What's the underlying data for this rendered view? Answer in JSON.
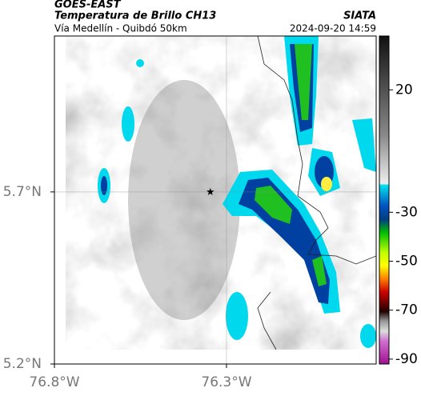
{
  "header": {
    "source": "GOES-EAST",
    "title": "Temperatura de Brillo CH13",
    "brand": "SIATA",
    "subtitle": "Vía Medellín - Quibdó 50km",
    "timestamp": "2024-09-20 14:59"
  },
  "map": {
    "xlim": [
      -76.8,
      -75.865
    ],
    "ylim": [
      5.2,
      6.153
    ],
    "xticks": [
      {
        "value": -76.8,
        "label": "76.8°W"
      },
      {
        "value": -76.3,
        "label": "76.3°W"
      }
    ],
    "yticks": [
      {
        "value": 5.7,
        "label": "5.7°N"
      },
      {
        "value": 5.2,
        "label": "5.2°N"
      }
    ],
    "marker": {
      "lon": -76.347,
      "lat": 5.7
    }
  },
  "colorbar": {
    "clim": [
      -92,
      42
    ],
    "ticks": [
      20,
      -30,
      -50,
      -70,
      -90
    ]
  }
}
